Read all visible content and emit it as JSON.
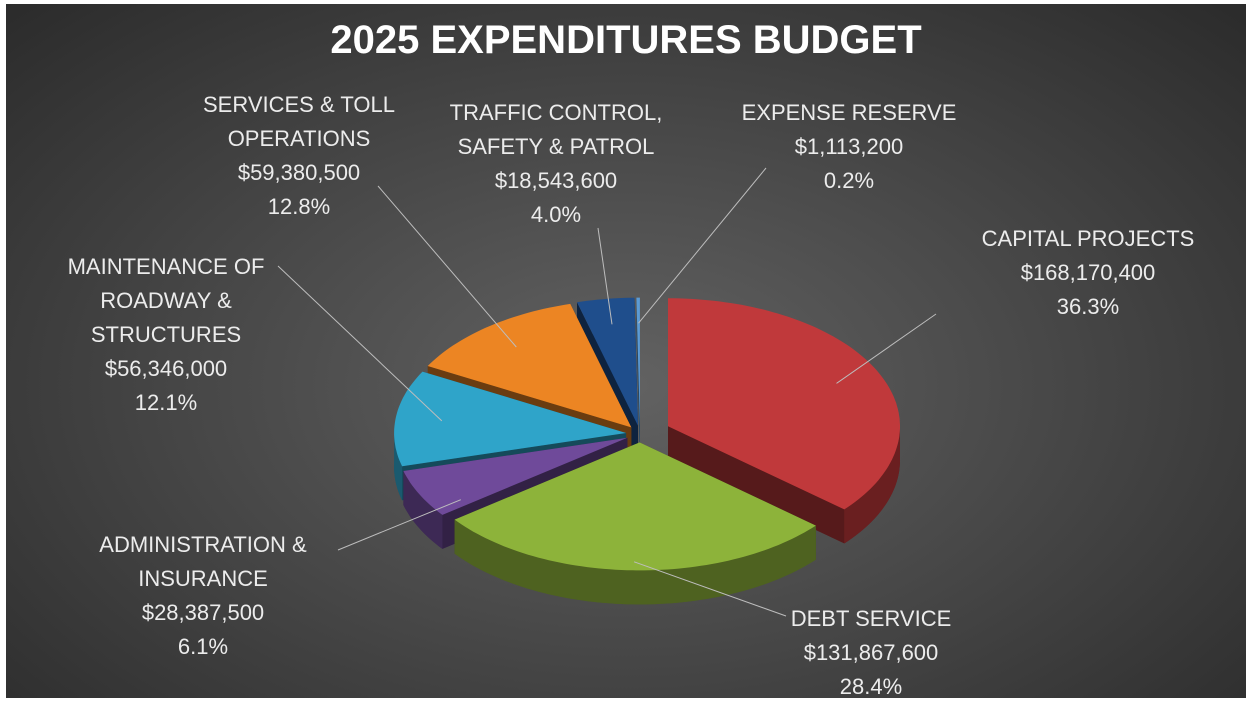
{
  "chart_data": {
    "type": "pie",
    "title": "2025 EXPENDITURES BUDGET",
    "categories": [
      "CAPITAL PROJECTS",
      "DEBT SERVICE",
      "ADMINISTRATION & INSURANCE",
      "MAINTENANCE OF ROADWAY & STRUCTURES",
      "SERVICES & TOLL OPERATIONS",
      "TRAFFIC CONTROL, SAFETY & PATROL",
      "EXPENSE RESERVE"
    ],
    "values": [
      168170400,
      131867600,
      28387500,
      56346000,
      59380500,
      18543600,
      1113200
    ],
    "value_labels": [
      "$168,170,400",
      "$131,867,600",
      "$28,387,500",
      "$56,346,000",
      "$59,380,500",
      "$18,543,600",
      "$1,113,200"
    ],
    "percent_labels": [
      "36.3%",
      "28.4%",
      "6.1%",
      "12.1%",
      "12.8%",
      "4.0%",
      "0.2%"
    ],
    "colors": [
      "#c0393b",
      "#8db33a",
      "#6f4a9a",
      "#2fa4c9",
      "#ec8523",
      "#1f4e8c",
      "#5b9bd5"
    ]
  }
}
